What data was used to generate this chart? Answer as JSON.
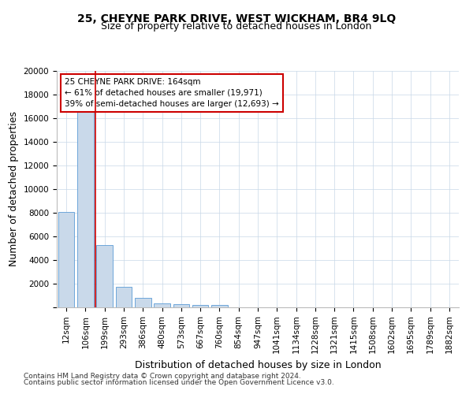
{
  "title": "25, CHEYNE PARK DRIVE, WEST WICKHAM, BR4 9LQ",
  "subtitle": "Size of property relative to detached houses in London",
  "xlabel": "Distribution of detached houses by size in London",
  "ylabel": "Number of detached properties",
  "categories": [
    "12sqm",
    "106sqm",
    "199sqm",
    "293sqm",
    "386sqm",
    "480sqm",
    "573sqm",
    "667sqm",
    "760sqm",
    "854sqm",
    "947sqm",
    "1041sqm",
    "1134sqm",
    "1228sqm",
    "1321sqm",
    "1415sqm",
    "1508sqm",
    "1602sqm",
    "1695sqm",
    "1789sqm",
    "1882sqm"
  ],
  "bar_values": [
    8100,
    16500,
    5300,
    1750,
    800,
    350,
    280,
    220,
    200,
    0,
    0,
    0,
    0,
    0,
    0,
    0,
    0,
    0,
    0,
    0,
    0
  ],
  "bar_color": "#c9d9ea",
  "bar_edge_color": "#5b9bd5",
  "vline_index": 2,
  "annotation_text": "25 CHEYNE PARK DRIVE: 164sqm\n← 61% of detached houses are smaller (19,971)\n39% of semi-detached houses are larger (12,693) →",
  "annotation_box_color": "#ffffff",
  "annotation_box_edge": "#cc0000",
  "vline_color": "#cc0000",
  "ylim": [
    0,
    20000
  ],
  "yticks": [
    0,
    2000,
    4000,
    6000,
    8000,
    10000,
    12000,
    14000,
    16000,
    18000,
    20000
  ],
  "footer_line1": "Contains HM Land Registry data © Crown copyright and database right 2024.",
  "footer_line2": "Contains public sector information licensed under the Open Government Licence v3.0.",
  "background_color": "#ffffff",
  "grid_color": "#c8d8e8",
  "title_fontsize": 10,
  "subtitle_fontsize": 9,
  "axis_label_fontsize": 9,
  "tick_fontsize": 7.5,
  "footer_fontsize": 6.5
}
